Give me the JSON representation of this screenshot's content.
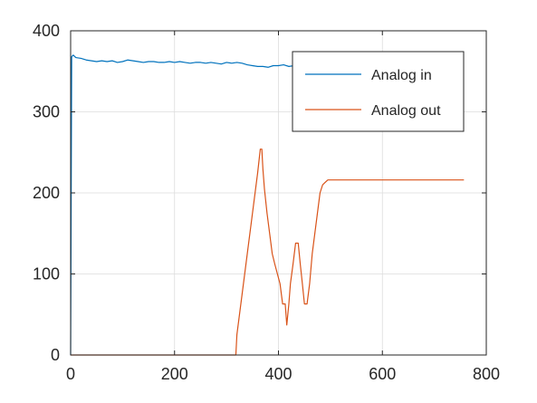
{
  "chart_data": {
    "type": "line",
    "title": "",
    "xlabel": "",
    "ylabel": "",
    "xlim": [
      0,
      800
    ],
    "ylim": [
      0,
      400
    ],
    "xticks": [
      0,
      200,
      400,
      600,
      800
    ],
    "yticks": [
      0,
      100,
      200,
      300,
      400
    ],
    "xtick_labels": [
      "0",
      "200",
      "400",
      "600",
      "800"
    ],
    "ytick_labels": [
      "0",
      "100",
      "200",
      "300",
      "400"
    ],
    "grid": true,
    "box": true,
    "legend_position": "top-right",
    "series": [
      {
        "name": "Analog in",
        "color": "#0072bd",
        "x": [
          0,
          2,
          5,
          10,
          20,
          30,
          40,
          50,
          60,
          70,
          80,
          90,
          100,
          110,
          120,
          130,
          140,
          150,
          160,
          170,
          180,
          190,
          200,
          210,
          220,
          230,
          240,
          250,
          260,
          270,
          280,
          290,
          300,
          310,
          320,
          330,
          340,
          350,
          360,
          370,
          380,
          390,
          400,
          410,
          420,
          430,
          440,
          450,
          460,
          470,
          480,
          490,
          500,
          510,
          520,
          530,
          540,
          550,
          560,
          570,
          580,
          590,
          600,
          610,
          620,
          630,
          640,
          650,
          660,
          670,
          680,
          690,
          700,
          710,
          720,
          730,
          740,
          750,
          757
        ],
        "values": [
          0,
          368,
          370,
          367,
          366,
          364,
          363,
          362,
          363,
          362,
          363,
          361,
          362,
          364,
          363,
          362,
          361,
          362,
          362,
          361,
          361,
          362,
          361,
          362,
          361,
          360,
          361,
          361,
          360,
          361,
          360,
          359,
          361,
          360,
          361,
          360,
          358,
          357,
          356,
          356,
          355,
          357,
          357,
          358,
          356,
          357,
          358,
          359,
          360,
          360,
          361,
          361,
          360,
          361,
          360,
          360,
          361,
          361,
          360,
          360,
          361,
          361,
          360,
          361,
          361,
          360,
          361,
          360,
          361,
          361,
          360,
          361,
          361,
          360,
          361,
          360,
          361,
          361,
          360
        ]
      },
      {
        "name": "Analog out",
        "color": "#d95319",
        "x": [
          0,
          318,
          320,
          325,
          330,
          335,
          340,
          345,
          350,
          355,
          360,
          365,
          368,
          370,
          373,
          378,
          383,
          388,
          393,
          398,
          403,
          408,
          413,
          416,
          420,
          423,
          428,
          433,
          438,
          442,
          446,
          450,
          455,
          460,
          465,
          470,
          475,
          480,
          485,
          490,
          495,
          500,
          505,
          510,
          757
        ],
        "values": [
          0,
          0,
          25,
          50,
          75,
          100,
          125,
          150,
          175,
          200,
          225,
          254,
          254,
          230,
          205,
          175,
          150,
          125,
          112,
          100,
          88,
          63,
          63,
          37,
          63,
          88,
          112,
          138,
          138,
          112,
          88,
          63,
          63,
          88,
          125,
          150,
          175,
          200,
          210,
          213,
          216,
          216,
          216,
          216,
          216
        ]
      }
    ]
  }
}
